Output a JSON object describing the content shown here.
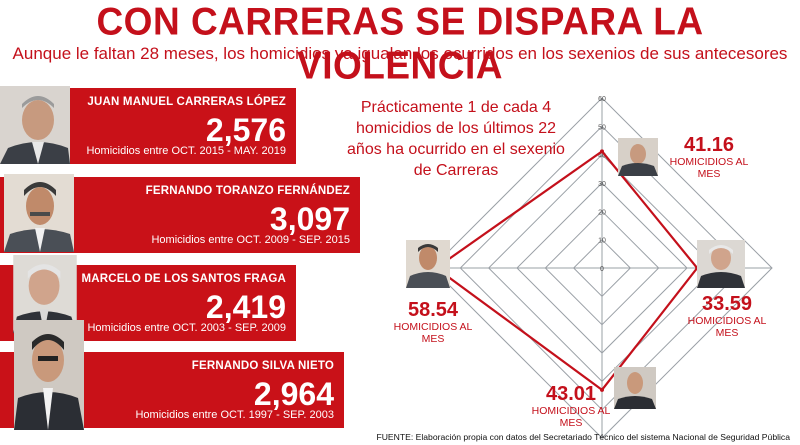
{
  "header": {
    "title": "CON CARRERAS SE DISPARA LA VIOLENCIA",
    "subtitle": "Aunque le faltan 28 meses, los homicidios ya igualan los ocurridos en los sexenios de sus antecesores"
  },
  "cards": [
    {
      "name": "JUAN MANUEL CARRERAS LÓPEZ",
      "count": "2,576",
      "period": "Homicidios entre OCT. 2015 - MAY. 2019"
    },
    {
      "name": "FERNANDO TORANZO FERNÁNDEZ",
      "count": "3,097",
      "period": "Homicidios entre OCT. 2009 - SEP. 2015"
    },
    {
      "name": "MARCELO DE LOS SANTOS FRAGA",
      "count": "2,419",
      "period": "Homicidios entre OCT. 2003 - SEP. 2009"
    },
    {
      "name": "FERNANDO SILVA NIETO",
      "count": "2,964",
      "period": "Homicidios entre OCT. 1997 - SEP. 2003"
    }
  ],
  "note": "Prácticamente 1 de cada 4 homicidios de los últimos 22 años ha ocurrido en el sexenio de Carreras",
  "source": "FUENTE: Elaboración propia con datos del Secretariado Técnico del sistema Nacional de Seguridad Pública",
  "chart_data": {
    "type": "radar",
    "axis_ticks": [
      "0",
      "10",
      "20",
      "30",
      "40",
      "50",
      "60"
    ],
    "rmax": 60,
    "unit_label": "HOMICIDIOS AL MES",
    "points": [
      {
        "value": 41.16,
        "label": "41.16"
      },
      {
        "value": 33.59,
        "label": "33.59"
      },
      {
        "value": 43.01,
        "label": "43.01"
      },
      {
        "value": 58.54,
        "label": "58.54"
      }
    ],
    "line_color": "#c4101b",
    "grid_color": "#9aa0a6"
  }
}
